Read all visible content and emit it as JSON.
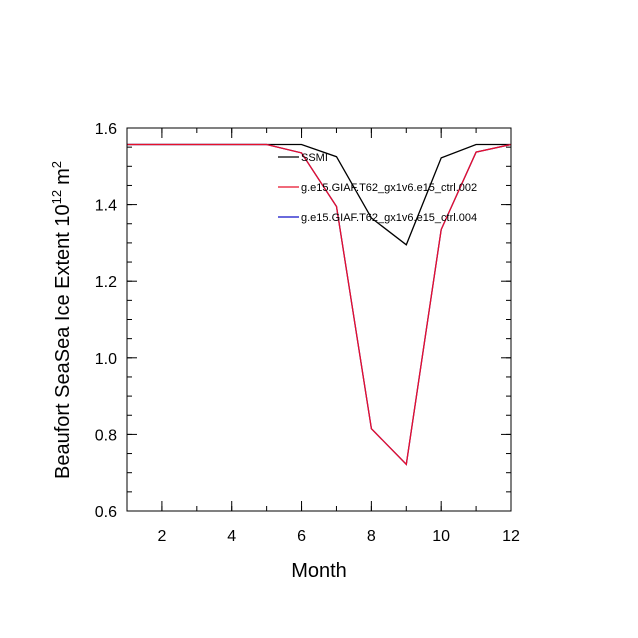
{
  "chart_data": {
    "type": "line",
    "xlabel": "Month",
    "ylabel": "Beaufort SeaSea Ice Extent 10",
    "ylabel_exponent": "12",
    "ylabel_unit": "m",
    "ylabel_unit_exponent": "2",
    "xlim": [
      1,
      12
    ],
    "ylim": [
      0.6,
      1.6
    ],
    "x_ticks": [
      "2",
      "4",
      "6",
      "8",
      "10",
      "12"
    ],
    "y_ticks": [
      "0.6",
      "0.8",
      "1.0",
      "1.2",
      "1.4",
      "1.6"
    ],
    "legend_position": "top-right",
    "x": [
      1,
      2,
      3,
      4,
      5,
      6,
      7,
      8,
      9,
      10,
      11,
      12
    ],
    "series": [
      {
        "name": "SSMI",
        "color": "#000000",
        "values": [
          1.557,
          1.557,
          1.557,
          1.557,
          1.557,
          1.557,
          1.525,
          1.365,
          1.295,
          1.522,
          1.557,
          1.557
        ]
      },
      {
        "name": "g.e15.GIAF.T62_gx1v6.e15_ctrl.002",
        "color": "#e8102a",
        "values": [
          1.557,
          1.557,
          1.557,
          1.557,
          1.557,
          1.535,
          1.395,
          0.815,
          0.722,
          1.335,
          1.537,
          1.557
        ]
      },
      {
        "name": "g.e15.GIAF.T62_gx1v6.e15_ctrl.004",
        "color": "#1010c8",
        "values": [
          1.557,
          1.557,
          1.557,
          1.557,
          1.557,
          1.535,
          1.395,
          0.815,
          0.722,
          1.335,
          1.537,
          1.557
        ]
      }
    ]
  }
}
